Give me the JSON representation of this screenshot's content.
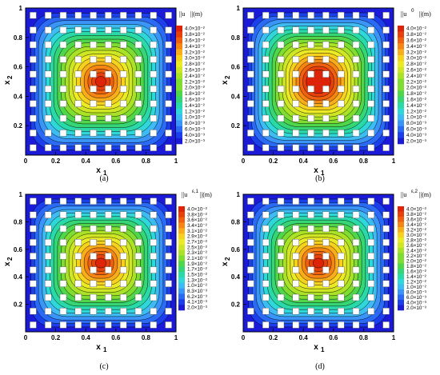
{
  "figure": {
    "panels": [
      {
        "caption": "(a)",
        "legend_title": "||u",
        "legend_sup": "",
        "legend_unit": "||(m)",
        "xlabel": "x",
        "xlabel_sub": "1",
        "ylabel": "x",
        "ylabel_sub": "2",
        "xticks": [
          "0",
          "0.2",
          "0.4",
          "0.6",
          "0.8",
          "1"
        ],
        "yticks": [
          "0.2",
          "0.4",
          "0.6",
          "0.8",
          "1"
        ],
        "legend_values": [
          "4.0×10⁻²",
          "3.8×10⁻²",
          "3.6×10⁻²",
          "3.4×10⁻²",
          "3.2×10⁻²",
          "3.0×10⁻²",
          "2.8×10⁻²",
          "2.6×10⁻²",
          "2.4×10⁻²",
          "2.2×10⁻²",
          "2.0×10⁻²",
          "1.8×10⁻²",
          "1.6×10⁻²",
          "1.4×10⁻²",
          "1.2×10⁻²",
          "1.0×10⁻²",
          "8.0×10⁻³",
          "6.0×10⁻³",
          "4.0×10⁻³",
          "2.0×10⁻³"
        ],
        "peak": 1.0
      },
      {
        "caption": "(b)",
        "legend_title": "||u",
        "legend_sup": "0",
        "legend_unit": "||(m)",
        "xlabel": "x",
        "xlabel_sub": "1",
        "ylabel": "x",
        "ylabel_sub": "2",
        "xticks": [
          "0",
          "0.2",
          "0.4",
          "0.6",
          "0.8",
          "1"
        ],
        "yticks": [
          "0.2",
          "0.4",
          "0.6",
          "0.8",
          "1"
        ],
        "legend_values": [
          "4.0×10⁻²",
          "3.8×10⁻²",
          "3.6×10⁻²",
          "3.4×10⁻²",
          "3.2×10⁻²",
          "3.0×10⁻²",
          "2.8×10⁻²",
          "2.6×10⁻²",
          "2.4×10⁻²",
          "2.2×10⁻²",
          "2.0×10⁻²",
          "1.8×10⁻²",
          "1.6×10⁻²",
          "1.4×10⁻²",
          "1.2×10⁻²",
          "1.0×10⁻²",
          "8.0×10⁻³",
          "6.0×10⁻³",
          "4.0×10⁻³",
          "2.0×10⁻³"
        ],
        "peak": 0.9
      },
      {
        "caption": "(c)",
        "legend_title": "||u",
        "legend_sup": "ε,1",
        "legend_unit": "||(m)",
        "xlabel": "x",
        "xlabel_sub": "1",
        "ylabel": "x",
        "ylabel_sub": "2",
        "xticks": [
          "0",
          "0.2",
          "0.4",
          "0.6",
          "0.8",
          "1"
        ],
        "yticks": [
          "0.2",
          "0.4",
          "0.6",
          "0.8",
          "1"
        ],
        "legend_values": [
          "4.0×10⁻²",
          "3.8×10⁻²",
          "3.6×10⁻²",
          "3.4×10⁻²",
          "3.1×10⁻²",
          "2.9×10⁻²",
          "2.7×10⁻²",
          "2.5×10⁻²",
          "2.3×10⁻²",
          "2.1×10⁻²",
          "1.9×10⁻²",
          "1.7×10⁻²",
          "1.5×10⁻²",
          "1.3×10⁻²",
          "1.0×10⁻²",
          "8.3×10⁻³",
          "6.2×10⁻³",
          "4.1×10⁻³",
          "2.0×10⁻³"
        ],
        "peak": 1.0
      },
      {
        "caption": "(d)",
        "legend_title": "||u",
        "legend_sup": "ε,2",
        "legend_unit": "||(m)",
        "xlabel": "x",
        "xlabel_sub": "1",
        "ylabel": "x",
        "ylabel_sub": "2",
        "xticks": [
          "0",
          "0.2",
          "0.4",
          "0.6",
          "0.8",
          "1"
        ],
        "yticks": [
          "0.2",
          "0.4",
          "0.6",
          "0.8",
          "1"
        ],
        "legend_values": [
          "4.0×10⁻²",
          "3.8×10⁻²",
          "3.6×10⁻²",
          "3.4×10⁻²",
          "3.2×10⁻²",
          "3.0×10⁻²",
          "2.8×10⁻²",
          "2.6×10⁻²",
          "2.4×10⁻²",
          "2.2×10⁻²",
          "2.0×10⁻²",
          "1.8×10⁻²",
          "1.6×10⁻²",
          "1.4×10⁻²",
          "1.2×10⁻²",
          "1.0×10⁻²",
          "8.0×10⁻³",
          "6.0×10⁻³",
          "4.0×10⁻³",
          "2.0×10⁻³"
        ],
        "peak": 1.0
      }
    ],
    "colormap": [
      "#1a1ad8",
      "#1c3fee",
      "#2a6af5",
      "#3b94f8",
      "#3cbcf2",
      "#2fd7d9",
      "#2ad9a8",
      "#36d676",
      "#4fd64a",
      "#7fdc31",
      "#a9e226",
      "#cfe624",
      "#ecea24",
      "#f6d21f",
      "#f7ae1a",
      "#f58614",
      "#f0610f",
      "#e8400b",
      "#dd2408"
    ]
  }
}
